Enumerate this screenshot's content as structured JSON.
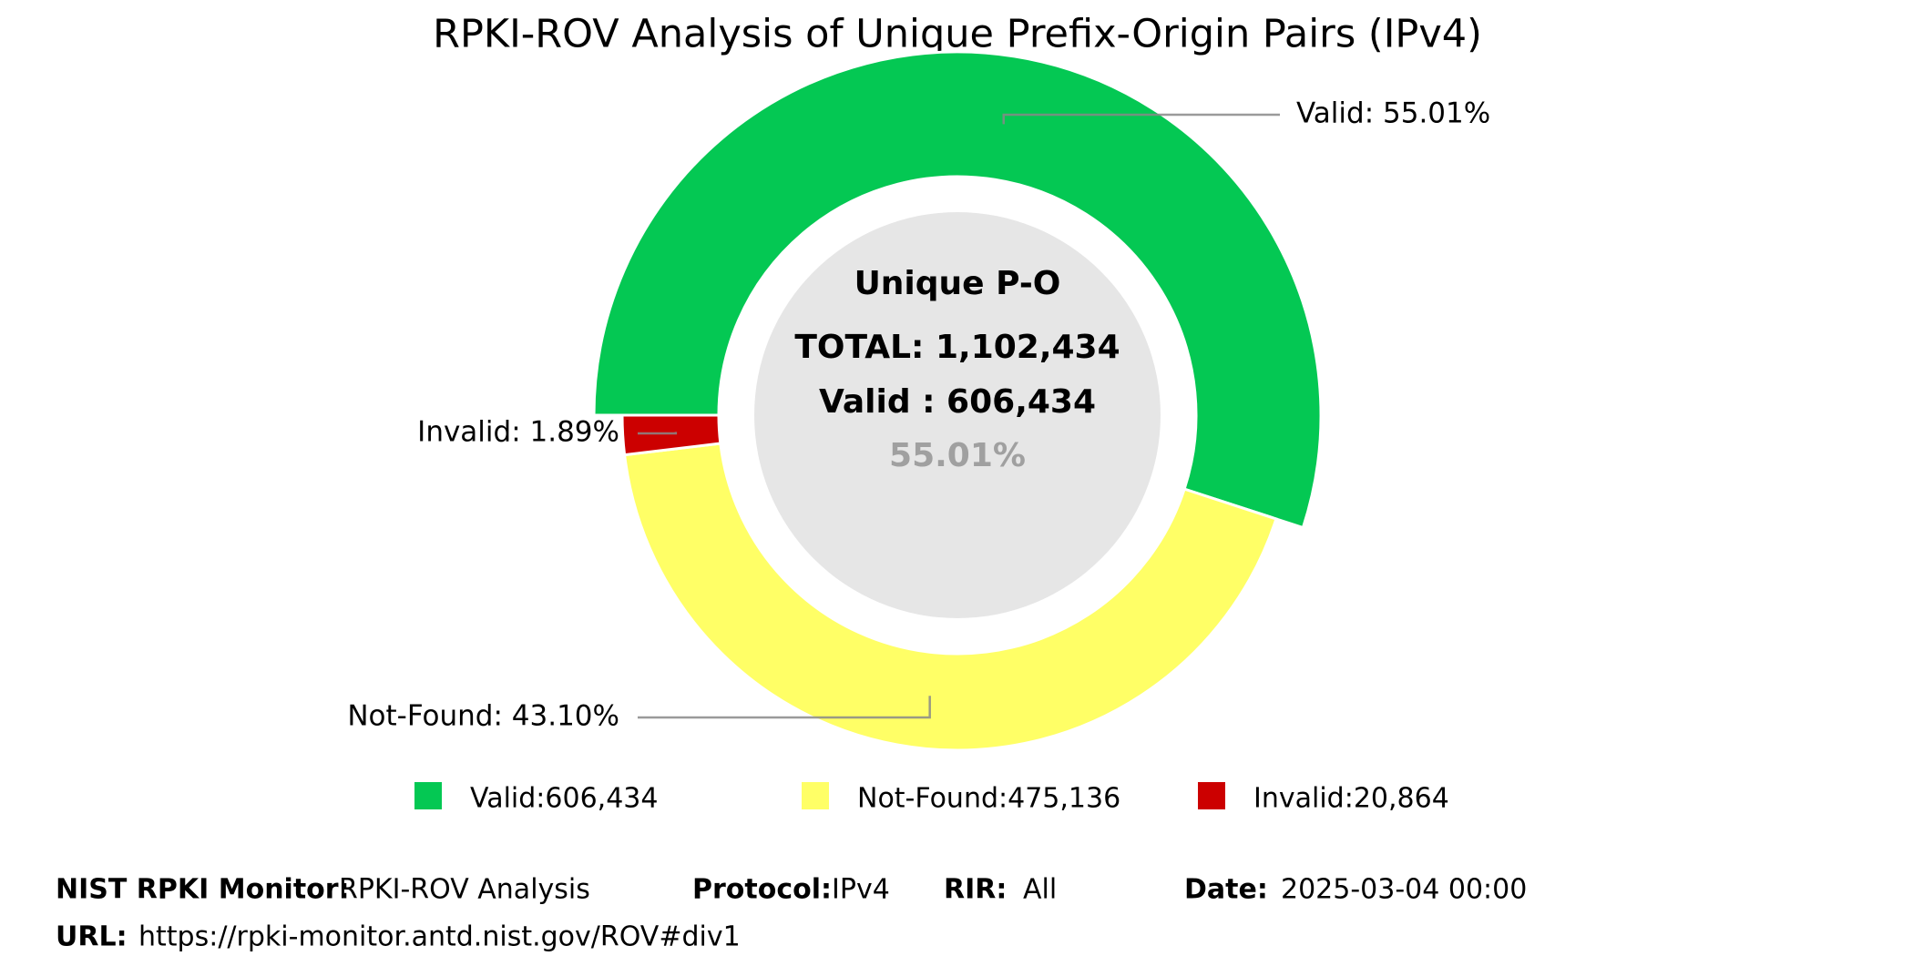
{
  "chart_data": {
    "type": "pie",
    "donut": true,
    "title": "RPKI-ROV Analysis of Unique Prefix-Origin Pairs (IPv4)",
    "categories": [
      "Valid",
      "Not-Found",
      "Invalid"
    ],
    "values": [
      55.01,
      43.1,
      1.89
    ],
    "value_labels": [
      "Valid: 55.01%",
      "Not-Found: 43.10%",
      "Invalid: 1.89%"
    ],
    "colors": [
      "#04c853",
      "#ffff66",
      "#cc0000"
    ],
    "legend": [
      "Valid:606,434",
      "Not-Found:475,136",
      "Invalid:20,864"
    ],
    "center": {
      "title": "Unique P-O",
      "total": "TOTAL: 1,102,434",
      "valid": "Valid : 606,434",
      "percent": "55.01%"
    }
  },
  "footer": {
    "fields": [
      {
        "label": "NIST RPKI Monitor:",
        "value": "RPKI-ROV Analysis"
      },
      {
        "label": "Protocol:",
        "value": "IPv4"
      },
      {
        "label": "RIR:",
        "value": "All"
      },
      {
        "label": "Date:",
        "value": "2025-03-04 00:00"
      },
      {
        "label": "URL:",
        "value": "https://rpki-monitor.antd.nist.gov/ROV#div1"
      }
    ]
  }
}
